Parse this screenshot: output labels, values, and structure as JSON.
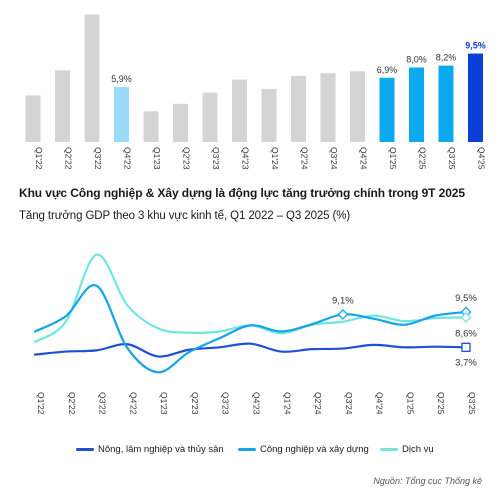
{
  "chart_data": [
    {
      "type": "bar",
      "categories": [
        "Q1'22",
        "Q2'22",
        "Q3'22",
        "Q4'22",
        "Q1'23",
        "Q2'23",
        "Q3'23",
        "Q4'23",
        "Q1'24",
        "Q2'24",
        "Q3'24",
        "Q4'24",
        "Q1'25",
        "Q2'25",
        "Q3'25",
        "Q4'25"
      ],
      "values": [
        5.0,
        7.7,
        13.7,
        5.9,
        3.3,
        4.1,
        5.3,
        6.7,
        5.7,
        7.1,
        7.4,
        7.6,
        6.9,
        8.0,
        8.2,
        9.5
      ],
      "data_labels": [
        "",
        "",
        "",
        "5,9%",
        "",
        "",
        "",
        "",
        "",
        "",
        "",
        "",
        "6,9%",
        "8,0%",
        "8,2%",
        "9,5%"
      ],
      "bar_colors": [
        "#d4d4d4",
        "#d4d4d4",
        "#d4d4d4",
        "#99dcfa",
        "#d4d4d4",
        "#d4d4d4",
        "#d4d4d4",
        "#d4d4d4",
        "#d4d4d4",
        "#d4d4d4",
        "#d4d4d4",
        "#d4d4d4",
        "#0ba9ef",
        "#0ba9ef",
        "#0ba9ef",
        "#0b3fd6"
      ],
      "label_colors": [
        "#333333",
        "#333333",
        "#333333",
        "#333333",
        "#333333",
        "#333333",
        "#333333",
        "#333333",
        "#333333",
        "#333333",
        "#333333",
        "#333333",
        "#333333",
        "#333333",
        "#333333",
        "#0b3fd6"
      ],
      "ylim": [
        0,
        14.5
      ],
      "grid": false
    },
    {
      "type": "line",
      "title": "Khu vực Công nghiệp & Xây dựng là động lực tăng trưởng chính trong 9T 2025",
      "subtitle": "Tăng trưởng GDP theo 3 khu vực kinh tế, Q1 2022 – Q3 2025 (%)",
      "categories": [
        "Q1'22",
        "Q2'22",
        "Q3'22",
        "Q4'22",
        "Q1'23",
        "Q2'23",
        "Q3'23",
        "Q4'23",
        "Q1'24",
        "Q2'24",
        "Q3'24",
        "Q4'24",
        "Q1'25",
        "Q2'25",
        "Q3'25"
      ],
      "series": [
        {
          "name": "Nông, lâm nghiệp và thủy sản",
          "color": "#1e50d6",
          "values": [
            2.5,
            3.0,
            3.2,
            4.2,
            2.2,
            3.3,
            3.7,
            4.3,
            3.0,
            3.4,
            3.5,
            4.1,
            3.7,
            3.8,
            3.7
          ]
        },
        {
          "name": "Công nghiệp và xây dựng",
          "color": "#14a4ea",
          "values": [
            6.3,
            8.8,
            13.8,
            3.6,
            -0.4,
            2.9,
            5.2,
            7.3,
            6.3,
            7.5,
            9.1,
            8.4,
            7.4,
            8.9,
            9.5
          ]
        },
        {
          "name": "Dịch vụ",
          "color": "#6fe6de",
          "values": [
            4.6,
            7.9,
            18.9,
            10.6,
            6.8,
            6.1,
            6.3,
            7.3,
            6.0,
            7.4,
            7.9,
            8.9,
            8.0,
            8.5,
            8.6
          ]
        }
      ],
      "annotations": [
        {
          "series": 1,
          "index": 10,
          "label": "9,1%"
        },
        {
          "series": 1,
          "index": 14,
          "label": "9,5%"
        },
        {
          "series": 2,
          "index": 14,
          "label": "8,6%"
        },
        {
          "series": 0,
          "index": 14,
          "label": "3,7%"
        }
      ],
      "ylim": [
        -1.5,
        20
      ],
      "grid": false
    }
  ],
  "source": "Nguồn: Tổng cục Thống kê"
}
